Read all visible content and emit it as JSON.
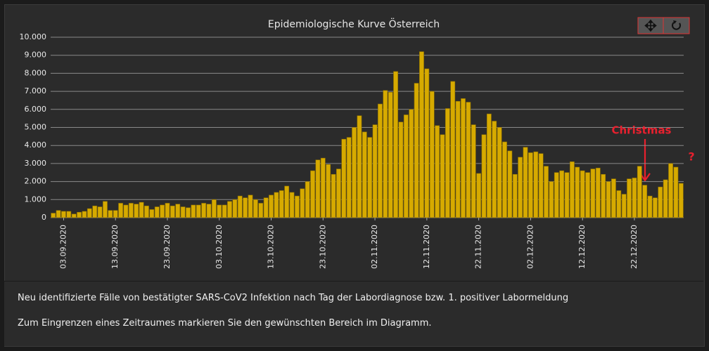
{
  "chart_data": {
    "type": "bar",
    "title": "Epidemiologische Kurve Österreich",
    "categories": [
      null,
      null,
      "03.09.2020",
      null,
      null,
      null,
      null,
      null,
      null,
      null,
      null,
      null,
      "13.09.2020",
      null,
      null,
      null,
      null,
      null,
      null,
      null,
      null,
      null,
      "23.09.2020",
      null,
      null,
      null,
      null,
      null,
      null,
      null,
      null,
      null,
      "03.10.2020",
      null,
      null,
      null,
      null,
      null,
      null,
      null,
      null,
      null,
      "13.10.2020",
      null,
      null,
      null,
      null,
      null,
      null,
      null,
      null,
      null,
      "23.10.2020",
      null,
      null,
      null,
      null,
      null,
      null,
      null,
      null,
      null,
      "02.11.2020",
      null,
      null,
      null,
      null,
      null,
      null,
      null,
      null,
      null,
      "12.11.2020",
      null,
      null,
      null,
      null,
      null,
      null,
      null,
      null,
      null,
      "22.11.2020",
      null,
      null,
      null,
      null,
      null,
      null,
      null,
      null,
      null,
      "02.12.2020",
      null,
      null,
      null,
      null,
      null,
      null,
      null,
      null,
      null,
      "12.12.2020",
      null,
      null,
      null,
      null,
      null,
      null,
      null,
      null,
      null,
      "22.12.2020",
      null,
      null,
      null,
      null,
      null,
      null,
      null,
      null,
      null
    ],
    "values": [
      250,
      400,
      350,
      350,
      200,
      300,
      350,
      500,
      650,
      600,
      900,
      400,
      400,
      800,
      700,
      800,
      750,
      850,
      650,
      450,
      600,
      700,
      800,
      650,
      750,
      600,
      550,
      700,
      700,
      800,
      750,
      1000,
      700,
      700,
      900,
      1000,
      1200,
      1100,
      1250,
      1000,
      800,
      1100,
      1250,
      1400,
      1500,
      1750,
      1400,
      1200,
      1600,
      2000,
      2600,
      3200,
      3300,
      2950,
      2400,
      2700,
      4350,
      4450,
      5000,
      5650,
      4750,
      4450,
      5150,
      6300,
      7050,
      6950,
      8100,
      5300,
      5700,
      6000,
      7450,
      9200,
      8250,
      7000,
      5100,
      4600,
      6050,
      7550,
      6450,
      6600,
      6400,
      5150,
      2450,
      4600,
      5750,
      5350,
      5000,
      4200,
      3700,
      2400,
      3350,
      3900,
      3600,
      3650,
      3550,
      2850,
      2000,
      2500,
      2600,
      2500,
      3100,
      2800,
      2600,
      2500,
      2700,
      2750,
      2400,
      2000,
      2150,
      1500,
      1300,
      2150,
      2200,
      2850,
      1800,
      1200,
      1100,
      1700,
      2100,
      3000,
      2800,
      1900
    ],
    "color": "#d6aa00",
    "ylim": [
      0,
      10000
    ],
    "yticks": [
      0,
      {
        "value": 1000,
        "label": "1.000"
      },
      {
        "value": 2000,
        "label": "2.000"
      },
      {
        "value": 3000,
        "label": "3.000"
      },
      {
        "value": 4000,
        "label": "4.000"
      },
      {
        "value": 5000,
        "label": "5.000"
      },
      {
        "value": 6000,
        "label": "6.000"
      },
      {
        "value": 7000,
        "label": "7.000"
      },
      {
        "value": 8000,
        "label": "8.000"
      },
      {
        "value": 9000,
        "label": "9.000"
      },
      {
        "value": 10000,
        "label": "10.000"
      }
    ],
    "grid": true,
    "annotations": [
      {
        "text": "Christmas",
        "color": "#e8202e"
      },
      {
        "text": "?",
        "color": "#e8202e"
      }
    ]
  },
  "footer": {
    "description": "Neu identifizierte Fälle von bestätigter SARS-CoV2 Infektion nach Tag der Labordiagnose bzw. 1. positiver Labormeldung",
    "hint": "Zum Eingrenzen eines Zeitraumes markieren Sie den gewünschten Bereich im Diagramm."
  }
}
